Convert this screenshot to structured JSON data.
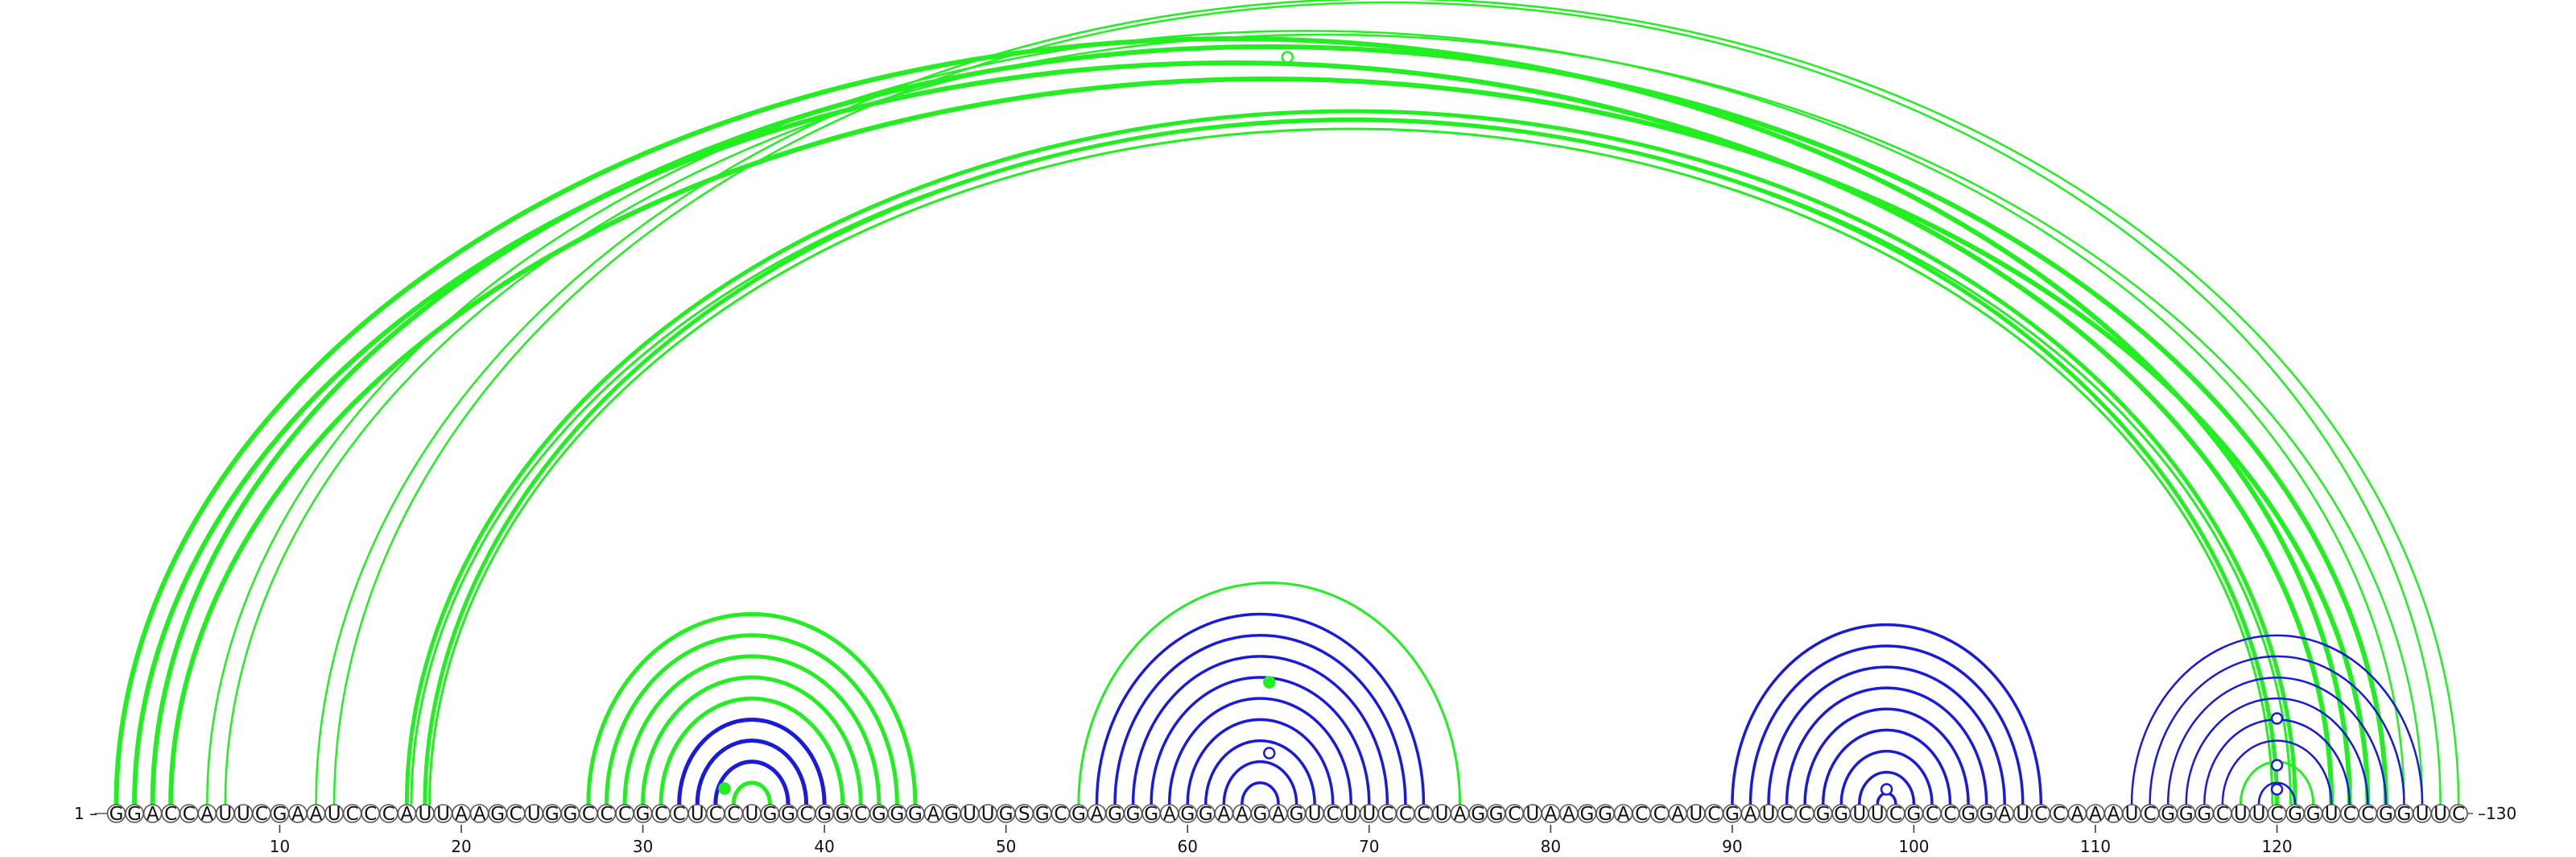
{
  "sequence": "GGACCAUUCGAAUCCCAUUAAGCUGGCCCGCCUCCUGGCGGCGGGAGUUGSGCGAGGGAGGAAGAGUCUUCCCUAGGCUAAGGACCAUCGAUCCGGUUCGCCGGAUCCAAAUCGGGCUUCGGUCCGGUUC",
  "labels": {
    "start": "1 –",
    "end": "–130"
  },
  "ticks": [
    10,
    20,
    30,
    40,
    50,
    60,
    70,
    80,
    90,
    100,
    110,
    120
  ],
  "colors": {
    "green": "#22ee22",
    "blue": "#1a1adb"
  },
  "pairs": {
    "green_thick": [
      [
        1,
        124
      ],
      [
        2,
        123
      ],
      [
        3,
        126
      ],
      [
        4,
        125
      ]
    ],
    "green_thin": [
      [
        6,
        127
      ],
      [
        7,
        128
      ],
      [
        12,
        130
      ],
      [
        13,
        129
      ]
    ],
    "green_double": [
      [
        17,
        121
      ],
      [
        18,
        120
      ]
    ],
    "helix_green_outer": [
      [
        27,
        45
      ],
      [
        28,
        44
      ],
      [
        29,
        43
      ],
      [
        30,
        42
      ],
      [
        31,
        41
      ]
    ],
    "helix_blue_inner": [
      [
        32,
        40
      ],
      [
        33,
        39
      ],
      [
        34,
        38
      ]
    ],
    "helix_green_core": [
      [
        35,
        37
      ]
    ],
    "helix2_green": [
      [
        54,
        75
      ]
    ],
    "helix2_blue": [
      [
        55,
        73
      ],
      [
        56,
        72
      ],
      [
        57,
        71
      ],
      [
        58,
        70
      ],
      [
        59,
        69
      ],
      [
        60,
        68
      ],
      [
        61,
        67
      ],
      [
        62,
        66
      ],
      [
        63,
        65
      ]
    ],
    "helix3_blue": [
      [
        90,
        107
      ],
      [
        91,
        106
      ],
      [
        92,
        105
      ],
      [
        93,
        104
      ],
      [
        94,
        103
      ],
      [
        95,
        102
      ],
      [
        96,
        101
      ],
      [
        97,
        100
      ],
      [
        98,
        99
      ]
    ],
    "helix4_blue_outer": [
      [
        112,
        128
      ],
      [
        113,
        127
      ],
      [
        114,
        126
      ],
      [
        115,
        125
      ],
      [
        116,
        124
      ],
      [
        117,
        123
      ]
    ],
    "helix4_green": [
      [
        118,
        122
      ]
    ],
    "helix4_blue_inner": [
      [
        119,
        121
      ]
    ]
  },
  "markers": [
    {
      "i": 34.5,
      "j": 34.5,
      "lift": 1,
      "style": "filled",
      "color": "green"
    },
    {
      "i": 64.5,
      "j": 64.5,
      "lift": 0,
      "style": "filled-top",
      "color": "green"
    },
    {
      "i": 64.5,
      "j": 64.5,
      "lift": 0,
      "style": "open-mid",
      "color": "blue"
    },
    {
      "i": 98.5,
      "j": 98.5,
      "lift": 0,
      "style": "open-low",
      "color": "blue"
    },
    {
      "i": 120,
      "j": 120,
      "lift": 0,
      "style": "open-a",
      "color": "blue"
    },
    {
      "i": 120,
      "j": 120,
      "lift": 0,
      "style": "open-b",
      "color": "blue"
    },
    {
      "i": 120,
      "j": 120,
      "lift": 0,
      "style": "open-c",
      "color": "blue"
    },
    {
      "i": 65.5,
      "j": 65.5,
      "lift": 0,
      "style": "open-top",
      "color": "green"
    }
  ]
}
